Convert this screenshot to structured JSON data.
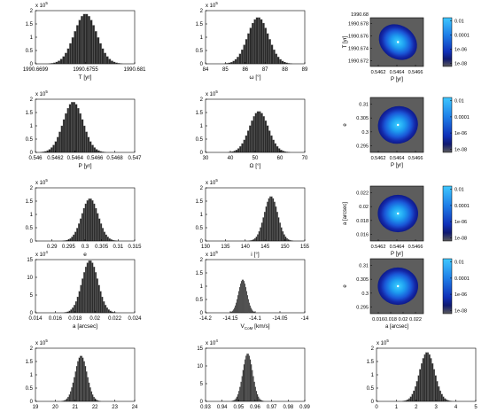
{
  "chart_data": [
    {
      "id": "T",
      "type": "histogram",
      "xlabel": "T [yr]",
      "ylabel_exp": "5",
      "xlim": [
        1990.6699,
        1990.681
      ],
      "xticks": [
        "1990.6699",
        "1990.6755",
        "1990.681"
      ],
      "ylim": [
        0,
        2
      ],
      "yticks": [
        "0",
        "0.5",
        "1",
        "1.5",
        "2"
      ],
      "peak": 1.88,
      "mu": 1990.6755,
      "sigma": 0.00125
    },
    {
      "id": "omega",
      "type": "histogram",
      "xlabel": "ω [°]",
      "ylabel_exp": "5",
      "xlim": [
        84,
        89
      ],
      "xticks": [
        "84",
        "85",
        "86",
        "87",
        "88",
        "89"
      ],
      "ylim": [
        0,
        2
      ],
      "yticks": [
        "0",
        "0.5",
        "1",
        "1.5",
        "2"
      ],
      "peak": 1.75,
      "mu": 86.65,
      "sigma": 0.52
    },
    {
      "id": "T_vs_P",
      "type": "heatmap",
      "xlabel": "P [yr]",
      "ylabel": "T [yr]",
      "xticks": [
        "0.5462",
        "0.5464",
        "0.5466"
      ],
      "yticks": [
        "1990.678",
        "1990.676",
        "1990.674",
        "1990.672"
      ],
      "ytop": "1990.68",
      "colorbar": [
        "0.01",
        "0.0001",
        "1e-06",
        "1e-08"
      ]
    },
    {
      "id": "P",
      "type": "histogram",
      "xlabel": "P [yr]",
      "ylabel_exp": "5",
      "xlim": [
        0.546,
        0.547
      ],
      "xticks": [
        "0.546",
        "0.5462",
        "0.5464",
        "0.5466",
        "0.5468",
        "0.547"
      ],
      "ylim": [
        0,
        2
      ],
      "yticks": [
        "0",
        "0.5",
        "1",
        "1.5",
        "2"
      ],
      "peak": 1.9,
      "mu": 0.54638,
      "sigma": 0.0001
    },
    {
      "id": "Omega",
      "type": "histogram",
      "xlabel": "Ω [°]",
      "ylabel_exp": "5",
      "xlim": [
        30,
        70
      ],
      "xticks": [
        "30",
        "40",
        "50",
        "60",
        "70"
      ],
      "ylim": [
        0,
        2
      ],
      "yticks": [
        "0",
        "0.5",
        "1",
        "1.5",
        "2"
      ],
      "peak": 1.55,
      "mu": 51.5,
      "sigma": 3.8
    },
    {
      "id": "e_vs_P",
      "type": "heatmap",
      "xlabel": "P [yr]",
      "ylabel": "e",
      "xticks": [
        "0.5462",
        "0.5464",
        "0.5466"
      ],
      "yticks": [
        "0.31",
        "0.305",
        "0.3",
        "0.295"
      ],
      "colorbar": [
        "0.01",
        "0.0001",
        "1e-06",
        "1e-08"
      ]
    },
    {
      "id": "e",
      "type": "histogram",
      "xlabel": "e",
      "ylabel_exp": "5",
      "xlim": [
        0.285,
        0.315
      ],
      "xticks": [
        "0.29",
        "0.295",
        "0.3",
        "0.305",
        "0.31",
        "0.315"
      ],
      "ylim": [
        0,
        2
      ],
      "yticks": [
        "0",
        "0.5",
        "1",
        "1.5",
        "2"
      ],
      "peak": 1.6,
      "mu": 0.3015,
      "sigma": 0.0025
    },
    {
      "id": "i",
      "type": "histogram",
      "xlabel": "i [°]",
      "ylabel_exp": "5",
      "xlim": [
        130,
        155
      ],
      "xticks": [
        "130",
        "135",
        "140",
        "145",
        "150",
        "155"
      ],
      "ylim": [
        0,
        2
      ],
      "yticks": [
        "0",
        "0.5",
        "1",
        "1.5",
        "2"
      ],
      "peak": 1.68,
      "mu": 146.5,
      "sigma": 1.7
    },
    {
      "id": "a_vs_P",
      "type": "heatmap",
      "xlabel": "P [yr]",
      "ylabel": "a [arcsec]",
      "xticks": [
        "0.5462",
        "0.5464",
        "0.5466"
      ],
      "yticks": [
        "0.022",
        "0.02",
        "0.018",
        "0.016"
      ],
      "colorbar": [
        "0.01",
        "0.0001",
        "1e-06",
        "1e-08"
      ]
    },
    {
      "id": "a",
      "type": "histogram",
      "xlabel": "a [arcsec]",
      "ylabel_exp": "4",
      "xlim": [
        0.014,
        0.024
      ],
      "xticks": [
        "0.014",
        "0.016",
        "0.018",
        "0.02",
        "0.022",
        "0.024"
      ],
      "ylim": [
        0,
        15
      ],
      "yticks": [
        "0",
        "5",
        "10",
        "15"
      ],
      "peak": 14.8,
      "mu": 0.0195,
      "sigma": 0.0008
    },
    {
      "id": "Vcm",
      "type": "histogram",
      "xlabel": "V",
      "xlabel_sub": "CoM",
      "xlabel_unit": " [km/s]",
      "ylabel_exp": "5",
      "xlim": [
        -14.2,
        -14
      ],
      "xticks": [
        "-14.2",
        "-14.15",
        "-14.1",
        "-14.05",
        "-14"
      ],
      "ylim": [
        0,
        2
      ],
      "yticks": [
        "0",
        "0.5",
        "1",
        "1.5",
        "2"
      ],
      "peak": 1.25,
      "mu": -14.125,
      "sigma": 0.0085
    },
    {
      "id": "e_vs_a",
      "type": "heatmap",
      "xlabel": "a [arcsec]",
      "ylabel": "e",
      "xticks": [
        "0.016",
        "0.018",
        "0.02",
        "0.022"
      ],
      "yticks": [
        "0.31",
        "0.305",
        "0.3",
        "0.295"
      ],
      "colorbar": [
        "0.01",
        "0.0001",
        "1e-06",
        "1e-08"
      ]
    },
    {
      "id": "varpi",
      "type": "histogram",
      "xlabel": "ϖ [mas]",
      "ylabel_exp": "5",
      "xlim": [
        19,
        24
      ],
      "xticks": [
        "19",
        "20",
        "21",
        "22",
        "23",
        "24"
      ],
      "ylim": [
        0,
        2
      ],
      "yticks": [
        "0",
        "0.5",
        "1",
        "1.5",
        "2"
      ],
      "peak": 1.72,
      "mu": 21.3,
      "sigma": 0.3
    },
    {
      "id": "mratio",
      "type": "histogram",
      "xlabel": "m",
      "xlabel_sub": "2",
      "xlabel_mid": "/m",
      "xlabel_sub2": "1",
      "ylabel_exp": "4",
      "xlim": [
        0.93,
        0.99
      ],
      "xticks": [
        "0.93",
        "0.94",
        "0.95",
        "0.96",
        "0.97",
        "0.98",
        "0.99"
      ],
      "ylim": [
        0,
        15
      ],
      "yticks": [
        "0",
        "5",
        "10",
        "15"
      ],
      "peak": 13.5,
      "mu": 0.9555,
      "sigma": 0.003
    },
    {
      "id": "mtot",
      "type": "histogram",
      "xlabel": "Total mass [M",
      "xlabel_sub": "⊙",
      "xlabel_mid": "]",
      "ylabel_exp": "5",
      "xlim": [
        0,
        5
      ],
      "xticks": [
        "0",
        "1",
        "2",
        "3",
        "4",
        "5"
      ],
      "ylim": [
        0,
        2
      ],
      "yticks": [
        "0",
        "0.5",
        "1",
        "1.5",
        "2"
      ],
      "peak": 1.85,
      "mu": 2.55,
      "sigma": 0.38
    }
  ]
}
